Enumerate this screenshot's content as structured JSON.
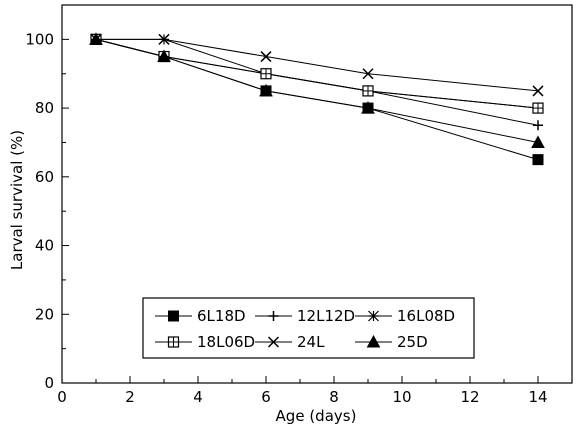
{
  "chart_data": {
    "type": "line",
    "xlabel": "Age (days)",
    "ylabel": "Larval survival (%)",
    "xlim": [
      0,
      15
    ],
    "ylim": [
      0,
      110
    ],
    "xticks": [
      0,
      2,
      4,
      6,
      8,
      10,
      12,
      14
    ],
    "yticks": [
      0,
      20,
      40,
      60,
      80,
      100
    ],
    "legend_position": "lower-center",
    "x": [
      1,
      3,
      6,
      9,
      14
    ],
    "series": [
      {
        "name": "6L18D",
        "marker": "filled-square",
        "values": [
          100,
          95,
          85,
          80,
          65
        ]
      },
      {
        "name": "12L12D",
        "marker": "plus",
        "values": [
          100,
          95,
          90,
          85,
          75
        ]
      },
      {
        "name": "16L08D",
        "marker": "asterisk",
        "values": [
          100,
          100,
          90,
          85,
          80
        ]
      },
      {
        "name": "18L06D",
        "marker": "open-square",
        "values": [
          100,
          95,
          90,
          85,
          80
        ]
      },
      {
        "name": "24L",
        "marker": "cross",
        "values": [
          100,
          100,
          95,
          90,
          85
        ]
      },
      {
        "name": "25D",
        "marker": "filled-triangle",
        "values": [
          100,
          95,
          85,
          80,
          70
        ]
      }
    ]
  }
}
